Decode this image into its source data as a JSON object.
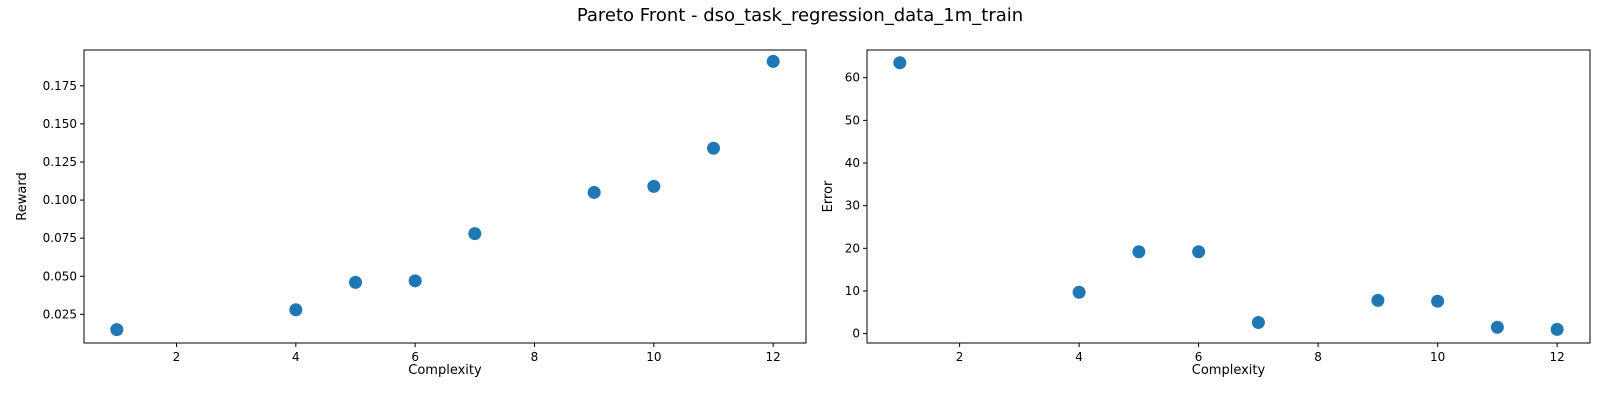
{
  "suptitle": "Pareto Front - dso_task_regression_data_1m_train",
  "colors": {
    "marker": "#1f77b4",
    "axis": "#000000",
    "background": "#ffffff"
  },
  "chart_data": [
    {
      "type": "scatter",
      "title": "",
      "xlabel": "Complexity",
      "ylabel": "Reward",
      "xlim": [
        0.45,
        12.55
      ],
      "ylim": [
        0.0062,
        0.1985
      ],
      "xticks": [
        2,
        4,
        6,
        8,
        10,
        12
      ],
      "xtick_labels": [
        "2",
        "4",
        "6",
        "8",
        "10",
        "12"
      ],
      "yticks": [
        0.025,
        0.05,
        0.075,
        0.1,
        0.125,
        0.15,
        0.175
      ],
      "ytick_labels": [
        "0.025",
        "0.050",
        "0.075",
        "0.100",
        "0.125",
        "0.150",
        "0.175"
      ],
      "grid": false,
      "x": [
        1,
        4,
        5,
        6,
        7,
        9,
        10,
        11,
        12
      ],
      "y": [
        0.015,
        0.028,
        0.046,
        0.047,
        0.078,
        0.105,
        0.109,
        0.134,
        0.191
      ]
    },
    {
      "type": "scatter",
      "title": "",
      "xlabel": "Complexity",
      "ylabel": "Error",
      "xlim": [
        0.45,
        12.55
      ],
      "ylim": [
        -2.2,
        66.5
      ],
      "xticks": [
        2,
        4,
        6,
        8,
        10,
        12
      ],
      "xtick_labels": [
        "2",
        "4",
        "6",
        "8",
        "10",
        "12"
      ],
      "yticks": [
        0,
        10,
        20,
        30,
        40,
        50,
        60
      ],
      "ytick_labels": [
        "0",
        "10",
        "20",
        "30",
        "40",
        "50",
        "60"
      ],
      "grid": false,
      "x": [
        1,
        4,
        5,
        6,
        7,
        9,
        10,
        11,
        12
      ],
      "y": [
        63.5,
        9.7,
        19.2,
        19.2,
        2.6,
        7.8,
        7.6,
        1.5,
        1.0
      ]
    }
  ]
}
